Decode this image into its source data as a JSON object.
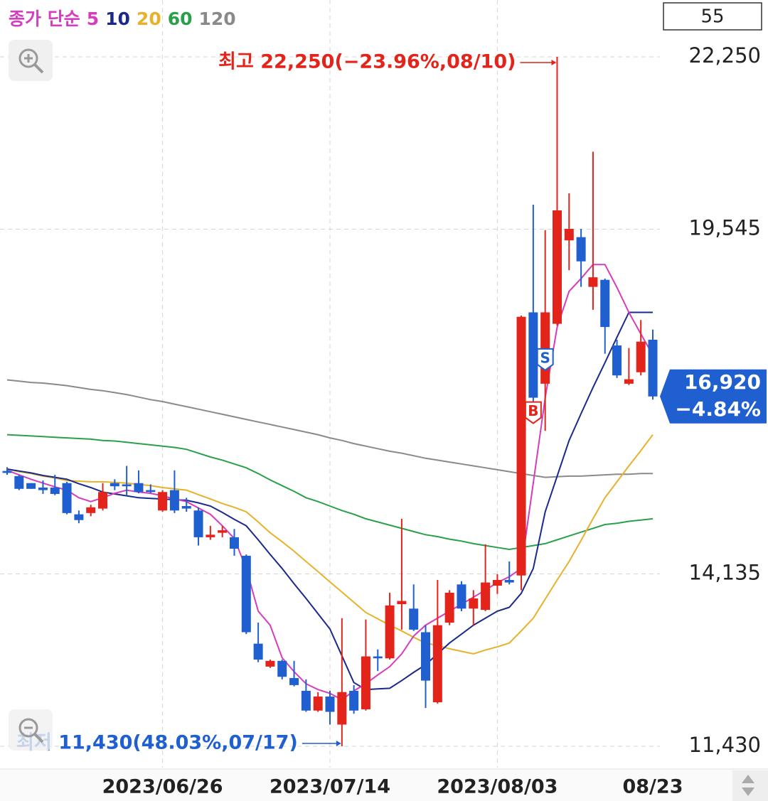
{
  "chart_data": {
    "type": "candlestick",
    "legend_title": "종가 단순",
    "period_count": 55,
    "categories": [
      null,
      null,
      null,
      null,
      null,
      null,
      null,
      null,
      null,
      null,
      null,
      null,
      null,
      "2023/06/26",
      null,
      null,
      null,
      null,
      null,
      null,
      null,
      null,
      null,
      null,
      null,
      null,
      null,
      "2023/07/14",
      null,
      null,
      null,
      null,
      null,
      null,
      null,
      null,
      null,
      null,
      null,
      null,
      null,
      "2023/08/03",
      null,
      null,
      null,
      null,
      null,
      null,
      null,
      null,
      null,
      null,
      null,
      null,
      "08/23"
    ],
    "open": [
      15750,
      15670,
      15560,
      15490,
      15490,
      15560,
      15070,
      15090,
      15160,
      15560,
      15540,
      15560,
      15450,
      15130,
      15450,
      15200,
      15130,
      14710,
      14780,
      14710,
      14420,
      13040,
      12680,
      12770,
      12500,
      12300,
      11990,
      12210,
      11770,
      12300,
      12010,
      12840,
      12810,
      13660,
      13590,
      13220,
      12120,
      13370,
      13970,
      13590,
      13570,
      13950,
      14040,
      14110,
      18240,
      17120,
      18060,
      19370,
      19420,
      18640,
      18750,
      17720,
      17120,
      17300,
      17810
    ],
    "high": [
      15810,
      15690,
      15560,
      15600,
      15690,
      15580,
      15130,
      15220,
      15560,
      15620,
      15830,
      15760,
      15540,
      15450,
      15760,
      15330,
      15180,
      14890,
      14890,
      14840,
      14440,
      13370,
      12790,
      12790,
      12770,
      12480,
      12280,
      12300,
      13440,
      12390,
      13420,
      12950,
      13840,
      15000,
      13970,
      13330,
      14040,
      13880,
      14020,
      13880,
      14600,
      14130,
      14330,
      18190,
      19930,
      19530,
      22250,
      20110,
      19550,
      20760,
      18770,
      17810,
      17680,
      18120,
      17970
    ],
    "low": [
      15690,
      15450,
      15470,
      15390,
      15370,
      15070,
      14930,
      15040,
      15130,
      15450,
      15360,
      15400,
      15400,
      15110,
      15090,
      15110,
      14580,
      14670,
      14710,
      14420,
      13190,
      12750,
      12660,
      12480,
      12370,
      11970,
      11970,
      11770,
      11430,
      11940,
      11990,
      12610,
      12790,
      13260,
      13240,
      12030,
      12100,
      13330,
      13550,
      13330,
      13550,
      13820,
      13970,
      13880,
      16780,
      16380,
      18030,
      18900,
      18640,
      18280,
      17590,
      17210,
      17100,
      17250,
      16870
    ],
    "close": [
      15720,
      15470,
      15470,
      15450,
      15390,
      15090,
      14980,
      15180,
      15420,
      15510,
      15510,
      15420,
      15420,
      15420,
      15130,
      15160,
      14710,
      14750,
      14820,
      14530,
      13220,
      12790,
      12770,
      12520,
      12390,
      11990,
      12210,
      11970,
      12280,
      11990,
      12840,
      12810,
      13640,
      13710,
      13260,
      12460,
      13330,
      13840,
      13590,
      13750,
      14000,
      14040,
      14000,
      18170,
      16900,
      18240,
      19840,
      19550,
      19040,
      18790,
      18010,
      17250,
      17190,
      17780,
      16920
    ],
    "up_color": "#e3241b",
    "down_color": "#1f5fcf",
    "series": [
      {
        "name": "5",
        "color": "#d63cc0",
        "values": [
          15760,
          15690,
          15620,
          15560,
          15500,
          15450,
          15330,
          15270,
          15330,
          15400,
          15450,
          15420,
          15400,
          15360,
          15310,
          15270,
          15170,
          15070,
          14890,
          14690,
          14220,
          13550,
          13330,
          12820,
          12600,
          12410,
          12320,
          12260,
          12160,
          12300,
          12410,
          12550,
          12680,
          12880,
          13160,
          13330,
          13440,
          13550,
          13660,
          13770,
          13880,
          14000,
          14090,
          14220,
          15560,
          16900,
          18010,
          18570,
          18770,
          18990,
          18990,
          18630,
          18240,
          17900,
          17570
        ]
      },
      {
        "name": "10",
        "color": "#1a2a8c",
        "values": [
          15780,
          15750,
          15720,
          15680,
          15650,
          15620,
          15550,
          15490,
          15420,
          15390,
          15360,
          15330,
          15320,
          15310,
          15300,
          15290,
          15250,
          15200,
          15100,
          14990,
          14890,
          14670,
          14440,
          14220,
          13980,
          13750,
          13510,
          13270,
          12850,
          12430,
          12320,
          12330,
          12340,
          12460,
          12590,
          12710,
          12880,
          13050,
          13190,
          13330,
          13440,
          13550,
          13610,
          13830,
          14220,
          15110,
          15670,
          16230,
          16650,
          17060,
          17450,
          17850,
          18240,
          18240,
          18240
        ]
      },
      {
        "name": "20",
        "color": "#e8b12a",
        "values": [
          15780,
          15740,
          15710,
          15670,
          15640,
          15600,
          15590,
          15580,
          15580,
          15570,
          15560,
          15540,
          15520,
          15490,
          15470,
          15450,
          15380,
          15310,
          15240,
          15180,
          15110,
          14950,
          14780,
          14640,
          14490,
          14330,
          14170,
          14010,
          13850,
          13690,
          13530,
          13430,
          13330,
          13240,
          13140,
          13050,
          13010,
          12960,
          12920,
          12880,
          12940,
          12990,
          13050,
          13240,
          13440,
          13740,
          14040,
          14330,
          14660,
          15000,
          15330,
          15580,
          15830,
          16070,
          16320
        ]
      },
      {
        "name": "60",
        "color": "#2aa04a",
        "values": [
          16320,
          16310,
          16300,
          16290,
          16280,
          16270,
          16260,
          16250,
          16230,
          16220,
          16200,
          16180,
          16160,
          16140,
          16120,
          16090,
          16030,
          15970,
          15920,
          15860,
          15800,
          15710,
          15610,
          15520,
          15430,
          15330,
          15270,
          15200,
          15130,
          15070,
          15000,
          14950,
          14900,
          14850,
          14800,
          14750,
          14720,
          14680,
          14650,
          14610,
          14580,
          14550,
          14520,
          14550,
          14580,
          14610,
          14670,
          14730,
          14790,
          14850,
          14910,
          14930,
          14960,
          14980,
          15000
        ]
      },
      {
        "name": "120",
        "color": "#8a8a8a",
        "values": [
          17180,
          17160,
          17140,
          17130,
          17110,
          17090,
          17060,
          17030,
          17010,
          16980,
          16950,
          16910,
          16870,
          16840,
          16800,
          16760,
          16720,
          16680,
          16640,
          16600,
          16560,
          16520,
          16480,
          16440,
          16400,
          16360,
          16320,
          16270,
          16230,
          16180,
          16140,
          16100,
          16060,
          16030,
          15990,
          15950,
          15920,
          15890,
          15860,
          15830,
          15800,
          15770,
          15740,
          15710,
          15680,
          15650,
          15660,
          15670,
          15670,
          15680,
          15690,
          15700,
          15700,
          15710,
          15710
        ]
      }
    ],
    "ylim": [
      11095,
      23142
    ],
    "yticks": [
      {
        "value": 11430,
        "label": "11,430"
      },
      {
        "value": 14135,
        "label": "14,135"
      },
      {
        "value": 19545,
        "label": "19,545"
      },
      {
        "value": 22250,
        "label": "22,250"
      }
    ],
    "grid": true,
    "annotations": [
      {
        "text": "최고 22,250(−23.96%,08/10)",
        "value": 22250,
        "at": 46,
        "color": "#e3241b",
        "side": "top"
      },
      {
        "text": "최저 11,430(48.03%,07/17)",
        "value": 11430,
        "at": 28,
        "color": "#1f5fcf",
        "side": "bottom"
      }
    ],
    "last": {
      "value": 16920,
      "label": "16,920",
      "change": -4.84,
      "change_label": "−4.84%",
      "color": "#1f5fcf"
    },
    "signals": [
      {
        "text": "B",
        "at": 44,
        "kind": "buy",
        "color": "#e3241b"
      },
      {
        "text": "S",
        "at": 45,
        "kind": "sell",
        "color": "#1f5fcf"
      }
    ]
  }
}
